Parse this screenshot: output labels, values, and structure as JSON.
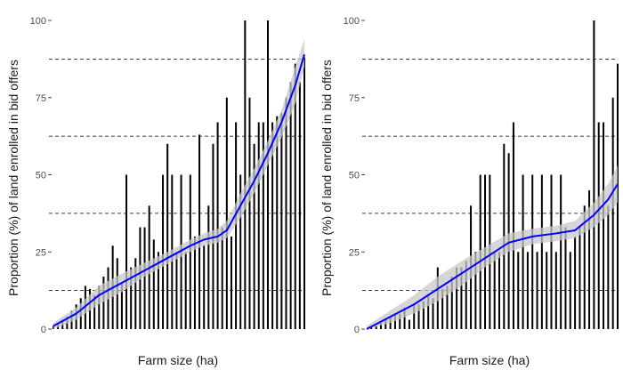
{
  "chart_data": [
    {
      "type": "bar",
      "panel": "left",
      "xlabel": "Farm size (ha)",
      "ylabel": "Proportion (%) of land enrolled in bid offers",
      "ylim": [
        0,
        100
      ],
      "y_ticks": [
        0,
        25,
        50,
        75,
        100
      ],
      "x_tick_labels": "none",
      "grid": false,
      "reference_lines": [
        12.5,
        37.5,
        62.5,
        87.5
      ],
      "categories_count": 56,
      "values": [
        1,
        2,
        3,
        4,
        6,
        8,
        10,
        14,
        13,
        11,
        14,
        17,
        20,
        27,
        23,
        15,
        50,
        20,
        23,
        33,
        33,
        40,
        29,
        25,
        50,
        60,
        50,
        25,
        50,
        25,
        50,
        30,
        63,
        27,
        40,
        60,
        67,
        33,
        75,
        30,
        67,
        50,
        100,
        75,
        60,
        67,
        67,
        100,
        67,
        69,
        70,
        75,
        80,
        86,
        80,
        88
      ],
      "smooth_fit": {
        "name": "",
        "color": "#0000ff",
        "band_color": "#c8c8c8",
        "points": [
          {
            "i": 0,
            "y": 1,
            "lo": 0,
            "hi": 2
          },
          {
            "i": 5,
            "y": 5,
            "lo": 3,
            "hi": 7
          },
          {
            "i": 10,
            "y": 11,
            "lo": 8,
            "hi": 14
          },
          {
            "i": 15,
            "y": 15,
            "lo": 12,
            "hi": 18
          },
          {
            "i": 20,
            "y": 19,
            "lo": 17,
            "hi": 21.5
          },
          {
            "i": 25,
            "y": 23,
            "lo": 21,
            "hi": 25
          },
          {
            "i": 30,
            "y": 27,
            "lo": 25,
            "hi": 29
          },
          {
            "i": 33,
            "y": 29,
            "lo": 27,
            "hi": 31
          },
          {
            "i": 36,
            "y": 30,
            "lo": 28,
            "hi": 32.5
          },
          {
            "i": 38,
            "y": 32,
            "lo": 29.5,
            "hi": 35
          },
          {
            "i": 41,
            "y": 40,
            "lo": 36,
            "hi": 44
          },
          {
            "i": 44,
            "y": 48,
            "lo": 44,
            "hi": 52
          },
          {
            "i": 47,
            "y": 57,
            "lo": 53,
            "hi": 61
          },
          {
            "i": 50,
            "y": 67,
            "lo": 62,
            "hi": 71
          },
          {
            "i": 53,
            "y": 79,
            "lo": 73,
            "hi": 85
          },
          {
            "i": 55,
            "y": 89,
            "lo": 85,
            "hi": 94
          }
        ]
      }
    },
    {
      "type": "bar",
      "panel": "right",
      "xlabel": "Farm size (ha)",
      "ylabel": "Proportion (%) of land enrolled in bid offers",
      "ylim": [
        0,
        100
      ],
      "y_ticks": [
        0,
        25,
        50,
        75,
        100
      ],
      "x_tick_labels": "none",
      "grid": false,
      "reference_lines": [
        12.5,
        37.5,
        62.5,
        87.5
      ],
      "categories_count": 54,
      "values": [
        0,
        1,
        1,
        2,
        3,
        4,
        5,
        5,
        7,
        3,
        8,
        8,
        9,
        11,
        10,
        20,
        13,
        14,
        17,
        20,
        20,
        22,
        40,
        25,
        50,
        50,
        50,
        25,
        25,
        60,
        57,
        67,
        25,
        50,
        25,
        50,
        25,
        50,
        25,
        50,
        25,
        50,
        33,
        25,
        30,
        33,
        40,
        45,
        100,
        67,
        67,
        40,
        75,
        86
      ],
      "smooth_fit": {
        "name": "",
        "color": "#0000ff",
        "band_color": "#c8c8c8",
        "points": [
          {
            "i": 0,
            "y": 0,
            "lo": 0,
            "hi": 1
          },
          {
            "i": 5,
            "y": 4,
            "lo": 2,
            "hi": 6
          },
          {
            "i": 10,
            "y": 8,
            "lo": 5,
            "hi": 11
          },
          {
            "i": 15,
            "y": 13,
            "lo": 9,
            "hi": 17
          },
          {
            "i": 20,
            "y": 18,
            "lo": 14,
            "hi": 22
          },
          {
            "i": 25,
            "y": 23,
            "lo": 20,
            "hi": 26.5
          },
          {
            "i": 30,
            "y": 28,
            "lo": 25,
            "hi": 31
          },
          {
            "i": 35,
            "y": 30,
            "lo": 27.5,
            "hi": 32.5
          },
          {
            "i": 40,
            "y": 31,
            "lo": 28.5,
            "hi": 33.5
          },
          {
            "i": 44,
            "y": 32,
            "lo": 29.5,
            "hi": 35
          },
          {
            "i": 48,
            "y": 37,
            "lo": 33,
            "hi": 41
          },
          {
            "i": 51,
            "y": 42,
            "lo": 37,
            "hi": 47
          },
          {
            "i": 53,
            "y": 47,
            "lo": 41,
            "hi": 53
          }
        ]
      }
    }
  ]
}
